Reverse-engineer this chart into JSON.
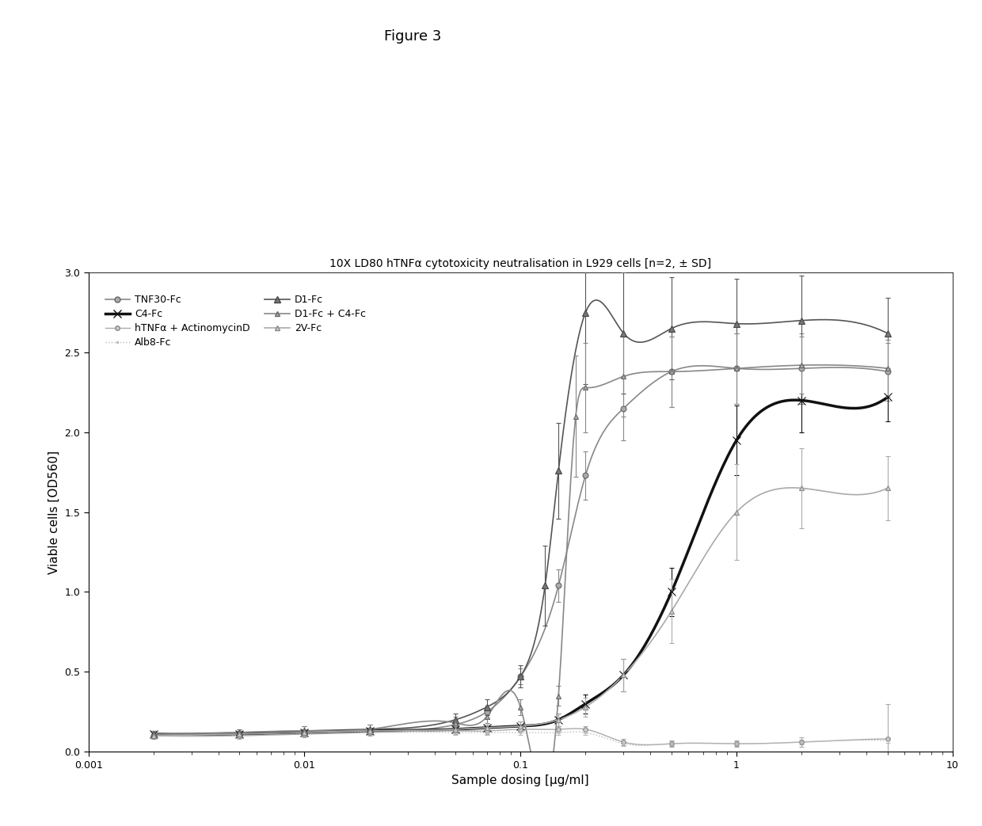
{
  "title_fig": "Figure 3",
  "title_chart": "10X LD80 hTNFα cytotoxicity neutralisation in L929 cells [n=2, ± SD]",
  "xlabel": "Sample dosing [µg/ml]",
  "ylabel": "Viable cells [OD560]",
  "ylim": [
    0,
    3.0
  ],
  "yticks": [
    0,
    0.5,
    1.0,
    1.5,
    2.0,
    2.5,
    3.0
  ],
  "background_color": "#ffffff",
  "fig_bg_color": "#ffffff",
  "series": [
    {
      "label": "TNF30-Fc",
      "color": "#888888",
      "linestyle": "-",
      "linewidth": 1.2,
      "marker": "o",
      "markersize": 5,
      "markerfacecolor": "#aaaaaa",
      "x_data": [
        0.002,
        0.005,
        0.01,
        0.02,
        0.05,
        0.07,
        0.1,
        0.15,
        0.2,
        0.3,
        0.5,
        1.0,
        2.0,
        5.0
      ],
      "y_data": [
        0.1,
        0.11,
        0.12,
        0.13,
        0.17,
        0.25,
        0.47,
        1.04,
        1.73,
        2.15,
        2.38,
        2.4,
        2.4,
        2.38
      ],
      "yerr": [
        0.02,
        0.02,
        0.02,
        0.02,
        0.03,
        0.04,
        0.05,
        0.1,
        0.15,
        0.2,
        0.22,
        0.22,
        0.22,
        0.18
      ]
    },
    {
      "label": "C4-Fc",
      "color": "#111111",
      "linestyle": "-",
      "linewidth": 2.5,
      "marker": "x",
      "markersize": 7,
      "markerfacecolor": "#111111",
      "x_data": [
        0.002,
        0.005,
        0.01,
        0.02,
        0.05,
        0.07,
        0.1,
        0.15,
        0.2,
        0.3,
        0.5,
        1.0,
        2.0,
        5.0
      ],
      "y_data": [
        0.11,
        0.11,
        0.12,
        0.13,
        0.14,
        0.15,
        0.16,
        0.2,
        0.3,
        0.48,
        1.0,
        1.95,
        2.2,
        2.22
      ],
      "yerr": [
        0.02,
        0.02,
        0.02,
        0.02,
        0.02,
        0.02,
        0.03,
        0.04,
        0.06,
        0.1,
        0.15,
        0.22,
        0.2,
        0.15
      ]
    },
    {
      "label": "hTNFα + ActinomycinD",
      "color": "#aaaaaa",
      "linestyle": "-",
      "linewidth": 1.0,
      "marker": "o",
      "markersize": 4,
      "markerfacecolor": "#cccccc",
      "x_data": [
        0.002,
        0.005,
        0.01,
        0.02,
        0.05,
        0.07,
        0.1,
        0.15,
        0.2,
        0.3,
        0.5,
        1.0,
        2.0,
        5.0
      ],
      "y_data": [
        0.1,
        0.1,
        0.11,
        0.12,
        0.13,
        0.13,
        0.14,
        0.14,
        0.14,
        0.06,
        0.05,
        0.05,
        0.06,
        0.08
      ],
      "yerr": [
        0.02,
        0.02,
        0.02,
        0.02,
        0.02,
        0.02,
        0.02,
        0.02,
        0.02,
        0.02,
        0.02,
        0.02,
        0.03,
        0.22
      ]
    },
    {
      "label": "Alb8-Fc",
      "color": "#bbbbbb",
      "linestyle": ":",
      "linewidth": 1.0,
      "marker": ".",
      "markersize": 3,
      "markerfacecolor": "#bbbbbb",
      "x_data": [
        0.002,
        0.005,
        0.01,
        0.02,
        0.05,
        0.07,
        0.1,
        0.15,
        0.2,
        0.3,
        0.5,
        1.0,
        2.0,
        5.0
      ],
      "y_data": [
        0.1,
        0.1,
        0.11,
        0.12,
        0.12,
        0.12,
        0.12,
        0.12,
        0.12,
        0.05,
        0.05,
        0.05,
        0.06,
        0.07
      ],
      "yerr": [
        0.015,
        0.015,
        0.015,
        0.015,
        0.015,
        0.015,
        0.015,
        0.015,
        0.015,
        0.015,
        0.015,
        0.015,
        0.015,
        0.015
      ]
    },
    {
      "label": "D1-Fc",
      "color": "#555555",
      "linestyle": "-",
      "linewidth": 1.2,
      "marker": "^",
      "markersize": 6,
      "markerfacecolor": "#888888",
      "x_data": [
        0.002,
        0.005,
        0.01,
        0.02,
        0.05,
        0.07,
        0.1,
        0.13,
        0.15,
        0.2,
        0.3,
        0.5,
        1.0,
        2.0,
        5.0
      ],
      "y_data": [
        0.11,
        0.12,
        0.13,
        0.14,
        0.2,
        0.28,
        0.47,
        1.04,
        1.76,
        2.75,
        2.62,
        2.65,
        2.68,
        2.7,
        2.62
      ],
      "yerr": [
        0.02,
        0.02,
        0.03,
        0.03,
        0.04,
        0.05,
        0.07,
        0.25,
        0.3,
        0.45,
        0.38,
        0.32,
        0.28,
        0.28,
        0.22
      ]
    },
    {
      "label": "D1-Fc + C4-Fc",
      "color": "#888888",
      "linestyle": "-",
      "linewidth": 1.2,
      "marker": "^",
      "markersize": 5,
      "markerfacecolor": "#aaaaaa",
      "x_data": [
        0.002,
        0.005,
        0.01,
        0.02,
        0.05,
        0.07,
        0.1,
        0.15,
        0.18,
        0.2,
        0.3,
        0.5,
        1.0,
        2.0,
        5.0
      ],
      "y_data": [
        0.11,
        0.12,
        0.13,
        0.14,
        0.18,
        0.22,
        0.28,
        0.35,
        2.1,
        2.28,
        2.35,
        2.38,
        2.4,
        2.42,
        2.4
      ],
      "yerr": [
        0.02,
        0.02,
        0.03,
        0.03,
        0.04,
        0.04,
        0.05,
        0.06,
        0.38,
        0.28,
        0.25,
        0.22,
        0.22,
        0.18,
        0.18
      ]
    },
    {
      "label": "2V-Fc",
      "color": "#aaaaaa",
      "linestyle": "-",
      "linewidth": 1.2,
      "marker": "^",
      "markersize": 5,
      "markerfacecolor": "#cccccc",
      "x_data": [
        0.002,
        0.005,
        0.01,
        0.02,
        0.05,
        0.07,
        0.1,
        0.15,
        0.2,
        0.3,
        0.5,
        1.0,
        2.0,
        5.0
      ],
      "y_data": [
        0.1,
        0.11,
        0.12,
        0.13,
        0.14,
        0.15,
        0.16,
        0.2,
        0.28,
        0.48,
        0.88,
        1.5,
        1.65,
        1.65
      ],
      "yerr": [
        0.02,
        0.02,
        0.02,
        0.02,
        0.02,
        0.02,
        0.03,
        0.04,
        0.06,
        0.1,
        0.2,
        0.3,
        0.25,
        0.2
      ]
    }
  ]
}
